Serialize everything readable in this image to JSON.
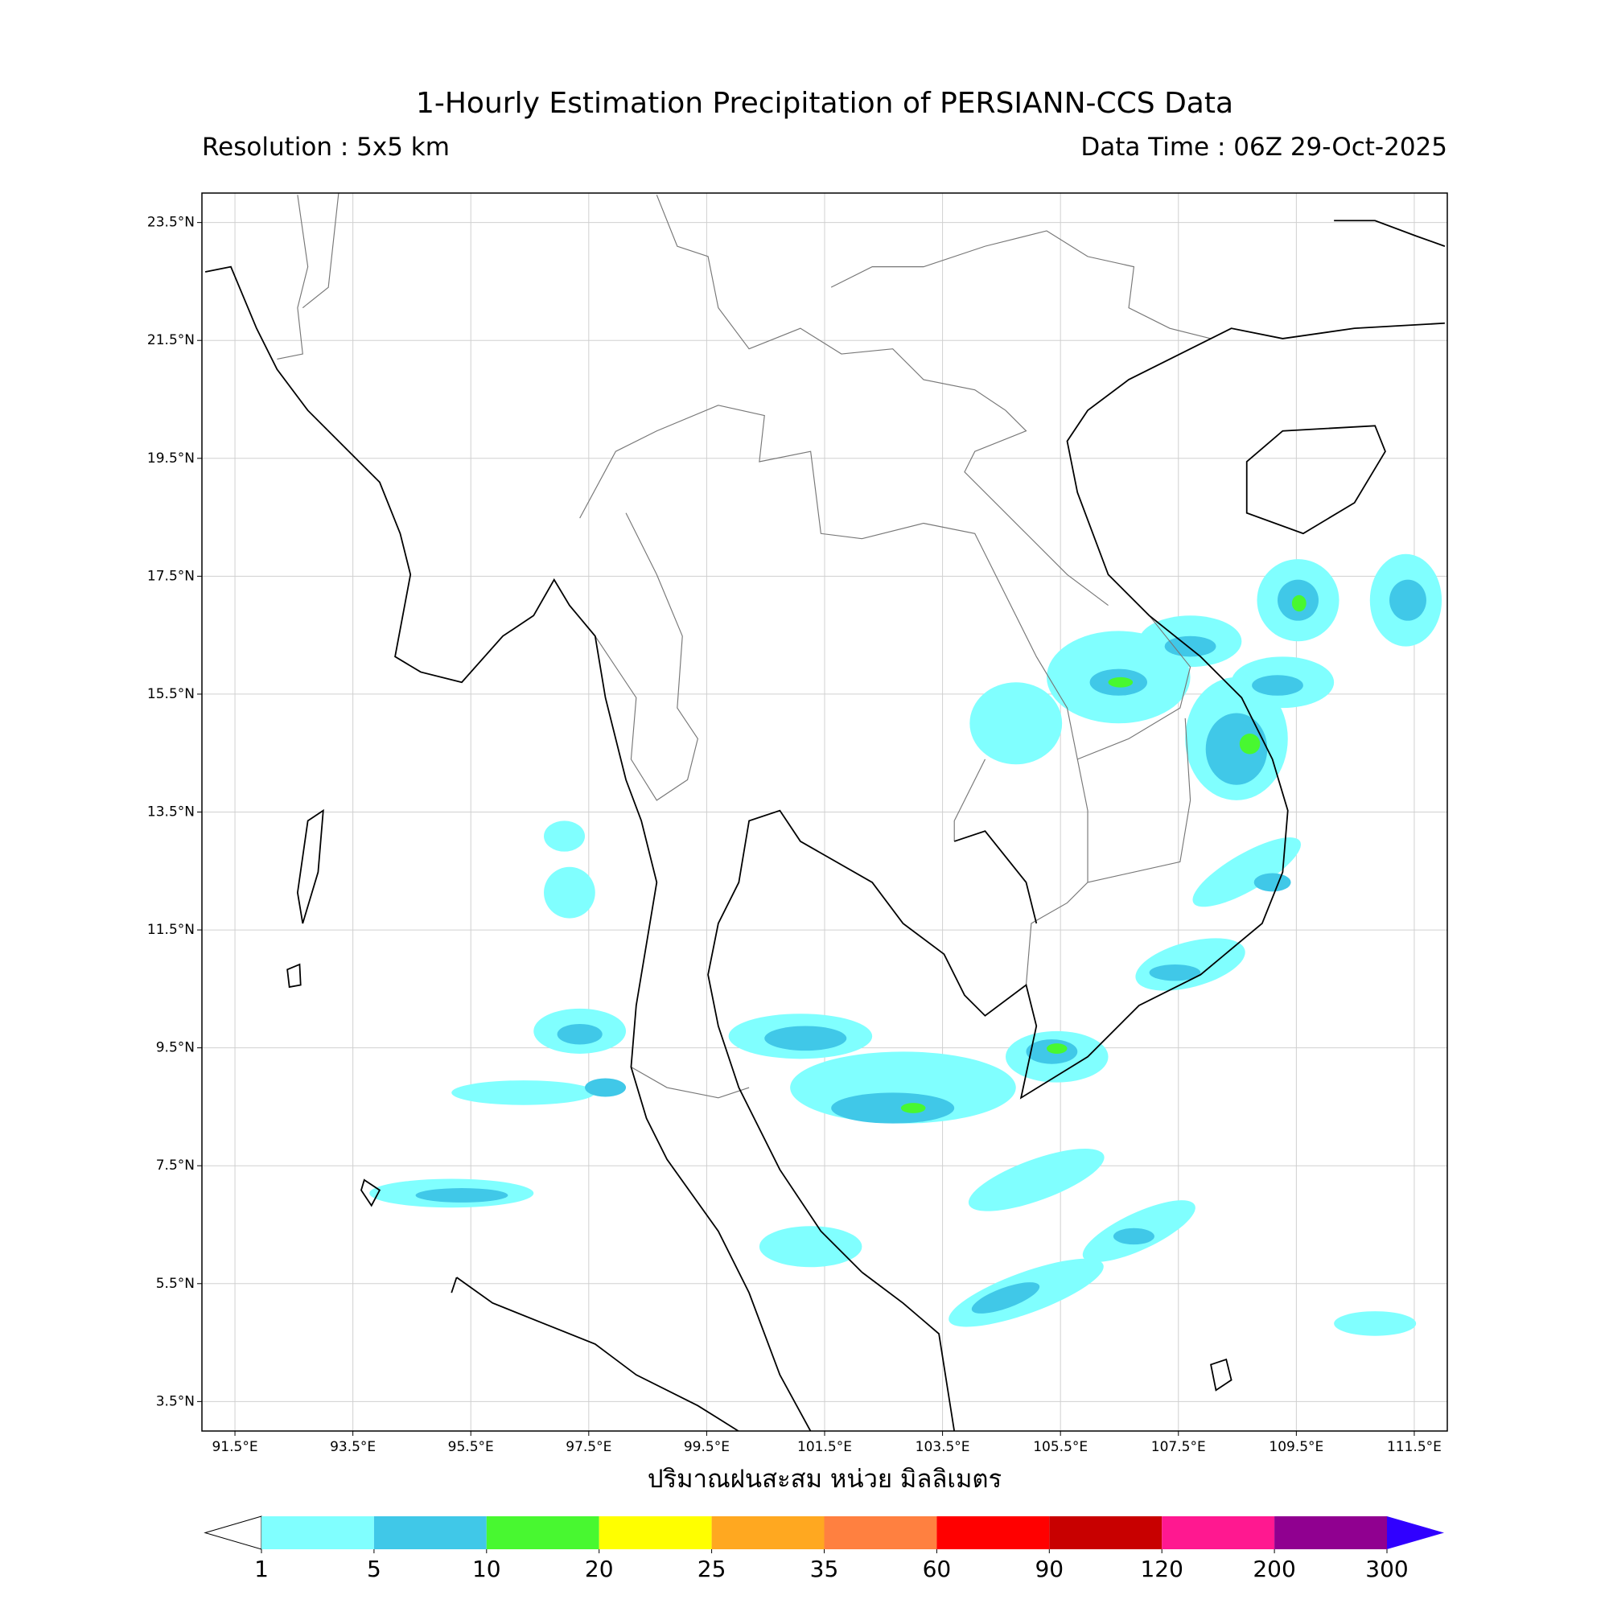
{
  "chart_data": {
    "type": "map",
    "title": "1-Hourly Estimation Precipitation of PERSIANN-CCS Data",
    "subtitle_left": "Resolution : 5x5 km",
    "subtitle_right": "Data Time : 06Z 29-Oct-2025",
    "xlabel": "ปริมาณฝนสะสม หน่วย มิลลิเมตร",
    "xlim": [
      90.94,
      112.06
    ],
    "ylim": [
      3.0,
      24.0
    ],
    "grid": true,
    "xticks": [
      {
        "value": 91.5,
        "label": "91.5°E"
      },
      {
        "value": 93.5,
        "label": "93.5°E"
      },
      {
        "value": 95.5,
        "label": "95.5°E"
      },
      {
        "value": 97.5,
        "label": "97.5°E"
      },
      {
        "value": 99.5,
        "label": "99.5°E"
      },
      {
        "value": 101.5,
        "label": "101.5°E"
      },
      {
        "value": 103.5,
        "label": "103.5°E"
      },
      {
        "value": 105.5,
        "label": "105.5°E"
      },
      {
        "value": 107.5,
        "label": "107.5°E"
      },
      {
        "value": 109.5,
        "label": "109.5°E"
      },
      {
        "value": 111.5,
        "label": "111.5°E"
      }
    ],
    "yticks": [
      {
        "value": 3.5,
        "label": "3.5°N"
      },
      {
        "value": 5.5,
        "label": "5.5°N"
      },
      {
        "value": 7.5,
        "label": "7.5°N"
      },
      {
        "value": 9.5,
        "label": "9.5°N"
      },
      {
        "value": 11.5,
        "label": "11.5°N"
      },
      {
        "value": 13.5,
        "label": "13.5°N"
      },
      {
        "value": 15.5,
        "label": "15.5°N"
      },
      {
        "value": 17.5,
        "label": "17.5°N"
      },
      {
        "value": 19.5,
        "label": "19.5°N"
      },
      {
        "value": 21.5,
        "label": "21.5°N"
      },
      {
        "value": 23.5,
        "label": "23.5°N"
      }
    ],
    "colorbar": {
      "levels": [
        1,
        5,
        10,
        20,
        25,
        35,
        60,
        90,
        120,
        200,
        300
      ],
      "colors": [
        "#80ffff",
        "#40c8e8",
        "#48f830",
        "#ffff00",
        "#ffa820",
        "#ff8040",
        "#ff0000",
        "#c80000",
        "#ff1890",
        "#900090"
      ],
      "under_color": "#ffffff",
      "over_color": "#3000ff"
    }
  }
}
